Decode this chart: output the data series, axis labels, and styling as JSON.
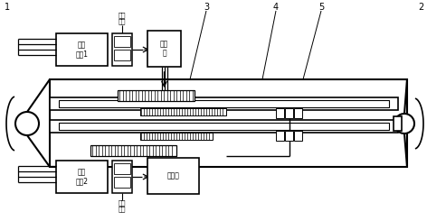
{
  "bg_color": "#ffffff",
  "lc": "#000000",
  "fig_width": 4.72,
  "fig_height": 2.45,
  "dpi": 100,
  "motor1_text": "容错\n电机1",
  "motor2_text": "容错\n电机2",
  "reducer1_text": "减速\n器",
  "reducer2_text": "减速器",
  "signal1_text": "电控\n信号",
  "signal2_text": "电控\n信号",
  "label1": "1",
  "label2": "2",
  "label3": "3",
  "label4": "4",
  "label5": "5"
}
